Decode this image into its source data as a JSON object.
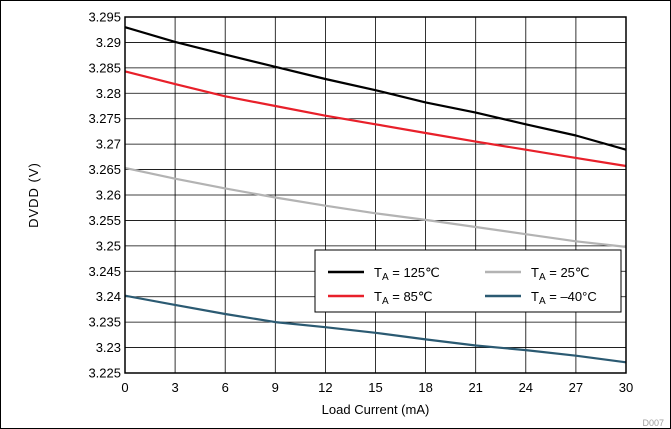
{
  "chart_data": {
    "type": "line",
    "xlabel": "Load Current  (mA)",
    "ylabel": "DVDD  (V)",
    "xlim": [
      0,
      30
    ],
    "ylim": [
      3.225,
      3.295
    ],
    "xticks": [
      0,
      3,
      6,
      9,
      12,
      15,
      18,
      21,
      24,
      27,
      30
    ],
    "yticks": [
      3.225,
      3.23,
      3.235,
      3.24,
      3.245,
      3.25,
      3.255,
      3.26,
      3.265,
      3.27,
      3.275,
      3.28,
      3.285,
      3.29,
      3.295
    ],
    "ytick_labels": [
      "3.225",
      "3.23",
      "3.235",
      "3.24",
      "3.245",
      "3.25",
      "3.255",
      "3.26",
      "3.265",
      "3.27",
      "3.275",
      "3.28",
      "3.285",
      "3.29",
      "3.295"
    ],
    "grid": true,
    "legend_position": "lower-right",
    "figure_code": "D007",
    "series": [
      {
        "name": "T_A = 125℃",
        "legend_sub": "A",
        "legend_rest": " = 125℃",
        "color": "#000000",
        "x": [
          0,
          3,
          6,
          9,
          12,
          15,
          18,
          21,
          24,
          27,
          30
        ],
        "y": [
          3.293,
          3.2901,
          3.2876,
          3.2852,
          3.2828,
          3.2806,
          3.2782,
          3.2762,
          3.2739,
          3.2717,
          3.2689
        ]
      },
      {
        "name": "T_A = 85℃",
        "legend_sub": "A",
        "legend_rest": " = 85℃",
        "color": "#e8202a",
        "x": [
          0,
          3,
          6,
          9,
          12,
          15,
          18,
          21,
          24,
          27,
          30
        ],
        "y": [
          3.2843,
          3.2818,
          3.2794,
          3.2775,
          3.2756,
          3.2739,
          3.2722,
          3.2705,
          3.2689,
          3.2673,
          3.2657
        ]
      },
      {
        "name": "T_A = 25℃",
        "legend_sub": "A",
        "legend_rest": " = 25℃",
        "color": "#b3b3b3",
        "x": [
          0,
          3,
          6,
          9,
          12,
          15,
          18,
          21,
          24,
          27,
          30
        ],
        "y": [
          3.2653,
          3.2632,
          3.2613,
          3.2595,
          3.2579,
          3.2564,
          3.2551,
          3.2537,
          3.2523,
          3.2509,
          3.2498
        ]
      },
      {
        "name": "T_A = –40°C",
        "legend_sub": "A",
        "legend_rest": " = –40°C",
        "color": "#2b5a72",
        "x": [
          0,
          3,
          6,
          9,
          12,
          15,
          18,
          21,
          24,
          27,
          30
        ],
        "y": [
          3.2402,
          3.2384,
          3.2366,
          3.235,
          3.234,
          3.2329,
          3.2316,
          3.2304,
          3.2295,
          3.2284,
          3.2271
        ]
      }
    ]
  }
}
